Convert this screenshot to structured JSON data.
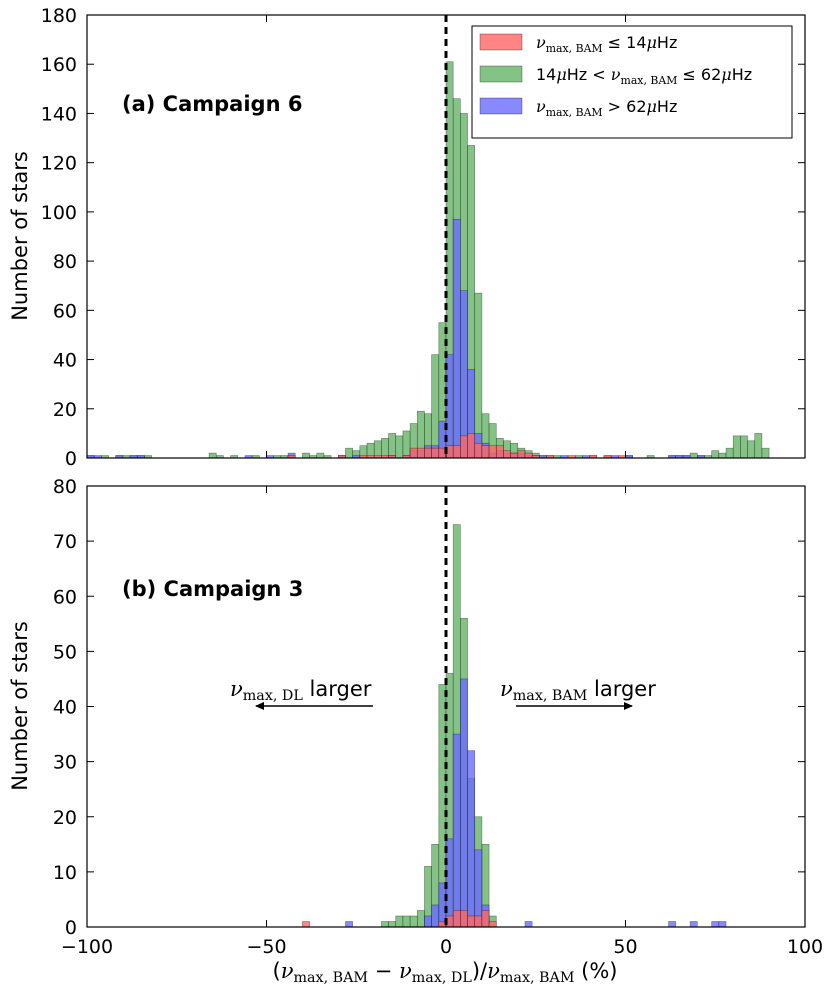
{
  "chart_data": [
    {
      "type": "bar",
      "panel": "a",
      "title": "(a) Campaign 6",
      "ylabel": "Number of stars",
      "xlim": [
        -100,
        100
      ],
      "ylim": [
        0,
        180
      ],
      "xticks": [
        "−100",
        "−50",
        "0",
        "50",
        "100"
      ],
      "yticks": [
        "0",
        "20",
        "40",
        "60",
        "80",
        "100",
        "120",
        "140",
        "160",
        "180"
      ],
      "bin_width": 2,
      "vertical_line_x": 0,
      "legend": {
        "location": "top-right",
        "entries": [
          {
            "series": "low",
            "parts": [
              {
                "t": "ν",
                "m": 1
              },
              {
                "t": "max, BAM",
                "sub": 1
              },
              {
                "t": " ≤ 14",
                "m": 0
              },
              {
                "t": "μ",
                "m": 1
              },
              {
                "t": "Hz",
                "m": 0
              }
            ]
          },
          {
            "series": "mid",
            "parts": [
              {
                "t": "14",
                "m": 0
              },
              {
                "t": "μ",
                "m": 1
              },
              {
                "t": "Hz < ",
                "m": 0
              },
              {
                "t": "ν",
                "m": 1
              },
              {
                "t": "max, BAM",
                "sub": 1
              },
              {
                "t": " ≤ 62",
                "m": 0
              },
              {
                "t": "μ",
                "m": 1
              },
              {
                "t": "Hz",
                "m": 0
              }
            ]
          },
          {
            "series": "high",
            "parts": [
              {
                "t": "ν",
                "m": 1
              },
              {
                "t": "max, BAM",
                "sub": 1
              },
              {
                "t": " > 62",
                "m": 0
              },
              {
                "t": "μ",
                "m": 1
              },
              {
                "t": "Hz",
                "m": 0
              }
            ]
          }
        ]
      },
      "series": [
        {
          "key": "mid",
          "color": "#66b366",
          "bins": [
            [
              -100,
              1
            ],
            [
              -96,
              1
            ],
            [
              -92,
              1
            ],
            [
              -90,
              1
            ],
            [
              -88,
              1
            ],
            [
              -86,
              1
            ],
            [
              -84,
              1
            ],
            [
              -66,
              2
            ],
            [
              -64,
              1
            ],
            [
              -60,
              1
            ],
            [
              -54,
              1
            ],
            [
              -48,
              1
            ],
            [
              -46,
              1
            ],
            [
              -44,
              1
            ],
            [
              -40,
              2
            ],
            [
              -38,
              1
            ],
            [
              -36,
              2
            ],
            [
              -34,
              1
            ],
            [
              -30,
              1
            ],
            [
              -28,
              4
            ],
            [
              -26,
              3
            ],
            [
              -24,
              5
            ],
            [
              -22,
              6
            ],
            [
              -20,
              7
            ],
            [
              -18,
              8
            ],
            [
              -16,
              10
            ],
            [
              -14,
              9
            ],
            [
              -12,
              11
            ],
            [
              -10,
              14
            ],
            [
              -8,
              19
            ],
            [
              -6,
              18
            ],
            [
              -4,
              42
            ],
            [
              -2,
              55
            ],
            [
              0,
              161
            ],
            [
              2,
              146
            ],
            [
              4,
              140
            ],
            [
              6,
              127
            ],
            [
              8,
              67
            ],
            [
              10,
              18
            ],
            [
              12,
              14
            ],
            [
              14,
              8
            ],
            [
              16,
              7
            ],
            [
              18,
              6
            ],
            [
              20,
              4
            ],
            [
              22,
              3
            ],
            [
              24,
              2
            ],
            [
              26,
              1
            ],
            [
              28,
              1
            ],
            [
              30,
              1
            ],
            [
              36,
              1
            ],
            [
              40,
              1
            ],
            [
              44,
              1
            ],
            [
              50,
              1
            ],
            [
              56,
              1
            ],
            [
              62,
              1
            ],
            [
              64,
              1
            ],
            [
              66,
              1
            ],
            [
              68,
              2
            ],
            [
              70,
              1
            ],
            [
              72,
              1
            ],
            [
              74,
              3
            ],
            [
              76,
              2
            ],
            [
              78,
              4
            ],
            [
              80,
              9
            ],
            [
              82,
              9
            ],
            [
              84,
              7
            ],
            [
              86,
              10
            ],
            [
              88,
              4
            ]
          ]
        },
        {
          "key": "high",
          "color": "#6a6aff",
          "bins": [
            [
              -100,
              1
            ],
            [
              -98,
              1
            ],
            [
              -92,
              1
            ],
            [
              -88,
              1
            ],
            [
              -86,
              1
            ],
            [
              -56,
              1
            ],
            [
              -50,
              1
            ],
            [
              -44,
              2
            ],
            [
              -30,
              1
            ],
            [
              -26,
              1
            ],
            [
              -16,
              1
            ],
            [
              -12,
              1
            ],
            [
              -10,
              3
            ],
            [
              -8,
              3
            ],
            [
              -6,
              5
            ],
            [
              -4,
              5
            ],
            [
              -2,
              15
            ],
            [
              0,
              42
            ],
            [
              2,
              97
            ],
            [
              4,
              68
            ],
            [
              6,
              36
            ],
            [
              8,
              10
            ],
            [
              10,
              6
            ],
            [
              12,
              2
            ],
            [
              14,
              3
            ],
            [
              16,
              2
            ],
            [
              18,
              2
            ],
            [
              20,
              2
            ],
            [
              22,
              1
            ],
            [
              24,
              1
            ],
            [
              26,
              1
            ],
            [
              32,
              1
            ],
            [
              38,
              1
            ],
            [
              46,
              1
            ],
            [
              50,
              1
            ],
            [
              62,
              1
            ],
            [
              64,
              1
            ],
            [
              66,
              1
            ],
            [
              70,
              1
            ]
          ]
        },
        {
          "key": "low",
          "color": "#ff6666",
          "bins": [
            [
              -44,
              1
            ],
            [
              -30,
              1
            ],
            [
              -24,
              1
            ],
            [
              -22,
              1
            ],
            [
              -20,
              1
            ],
            [
              -18,
              1
            ],
            [
              -16,
              1
            ],
            [
              -12,
              1
            ],
            [
              -10,
              4
            ],
            [
              -8,
              4
            ],
            [
              -6,
              4
            ],
            [
              -4,
              4
            ],
            [
              -2,
              4
            ],
            [
              0,
              5
            ],
            [
              2,
              5
            ],
            [
              4,
              9
            ],
            [
              6,
              10
            ],
            [
              8,
              6
            ],
            [
              10,
              5
            ],
            [
              12,
              5
            ],
            [
              14,
              5
            ],
            [
              16,
              3
            ],
            [
              18,
              2
            ],
            [
              20,
              3
            ],
            [
              22,
              2
            ],
            [
              24,
              1
            ],
            [
              28,
              1
            ],
            [
              34,
              1
            ],
            [
              40,
              1
            ],
            [
              44,
              1
            ],
            [
              48,
              1
            ]
          ]
        }
      ]
    },
    {
      "type": "bar",
      "panel": "b",
      "title": "(b) Campaign 3",
      "ylabel": "Number of stars",
      "xlabel_parts": [
        {
          "t": "(",
          "m": 0
        },
        {
          "t": "ν",
          "m": 1
        },
        {
          "t": "max, BAM",
          "sub": 1
        },
        {
          "t": " − ",
          "m": 0
        },
        {
          "t": "ν",
          "m": 1
        },
        {
          "t": "max, DL",
          "sub": 1
        },
        {
          "t": ")/",
          "m": 0
        },
        {
          "t": "ν",
          "m": 1
        },
        {
          "t": "max, BAM",
          "sub": 1
        },
        {
          "t": " (%)",
          "m": 0
        }
      ],
      "xlim": [
        -100,
        100
      ],
      "ylim": [
        0,
        80
      ],
      "xticks": [
        "−100",
        "−50",
        "0",
        "50",
        "100"
      ],
      "yticks": [
        "0",
        "10",
        "20",
        "30",
        "40",
        "50",
        "60",
        "70",
        "80"
      ],
      "bin_width": 2,
      "vertical_line_x": 0,
      "annotations": [
        {
          "parts": [
            {
              "t": "ν",
              "m": 1
            },
            {
              "t": "max, DL",
              "sub": 1
            },
            {
              "t": " larger",
              "m": 0
            }
          ],
          "direction": "left"
        },
        {
          "parts": [
            {
              "t": "ν",
              "m": 1
            },
            {
              "t": "max, BAM",
              "sub": 1
            },
            {
              "t": " larger",
              "m": 0
            }
          ],
          "direction": "right"
        }
      ],
      "series": [
        {
          "key": "mid",
          "color": "#66b366",
          "bins": [
            [
              -18,
              1
            ],
            [
              -16,
              1
            ],
            [
              -14,
              2
            ],
            [
              -12,
              2
            ],
            [
              -10,
              2
            ],
            [
              -8,
              3
            ],
            [
              -6,
              11
            ],
            [
              -4,
              15
            ],
            [
              -2,
              44
            ],
            [
              0,
              46
            ],
            [
              2,
              73
            ],
            [
              4,
              56
            ],
            [
              6,
              27
            ],
            [
              8,
              20
            ],
            [
              10,
              15
            ],
            [
              12,
              2
            ]
          ]
        },
        {
          "key": "high",
          "color": "#6a6aff",
          "bins": [
            [
              -28,
              1
            ],
            [
              -6,
              2
            ],
            [
              -4,
              4
            ],
            [
              -2,
              8
            ],
            [
              0,
              16
            ],
            [
              2,
              35
            ],
            [
              4,
              45
            ],
            [
              6,
              32
            ],
            [
              8,
              14
            ],
            [
              10,
              4
            ],
            [
              22,
              1
            ],
            [
              62,
              1
            ],
            [
              68,
              1
            ],
            [
              74,
              1
            ],
            [
              76,
              1
            ]
          ]
        },
        {
          "key": "low",
          "color": "#ff6666",
          "bins": [
            [
              -40,
              1
            ],
            [
              -2,
              1
            ],
            [
              0,
              2
            ],
            [
              2,
              3
            ],
            [
              4,
              3
            ],
            [
              6,
              2
            ],
            [
              8,
              2
            ],
            [
              10,
              3
            ],
            [
              12,
              1
            ]
          ]
        }
      ]
    }
  ]
}
